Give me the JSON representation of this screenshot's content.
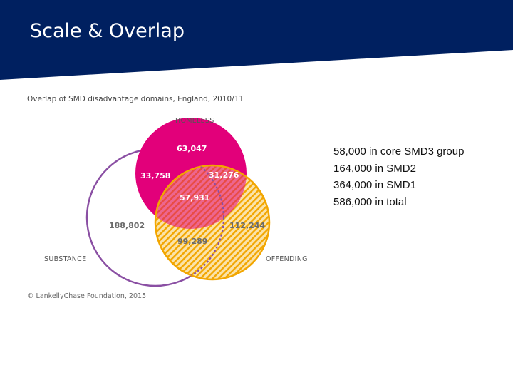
{
  "slide": {
    "title": "Scale & Overlap",
    "header_color": "#002060"
  },
  "figure": {
    "caption": "Overlap of SMD disadvantage domains, England, 2010/11",
    "credit": "© LankellyChase Foundation, 2015",
    "sets": {
      "homeless": {
        "label": "HOMELESS",
        "color": "#e2007a"
      },
      "offending": {
        "label": "OFFENDING",
        "color": "#f2a600"
      },
      "substance": {
        "label": "SUBSTANCE",
        "color": "#8a4fa3"
      }
    },
    "regions": {
      "homeless_only": "63,047",
      "homeless_substance": "33,758",
      "homeless_offending": "31,276",
      "all_three": "57,931",
      "substance_only": "188,802",
      "offending_only": "112,244",
      "substance_offending": "99,289"
    }
  },
  "summary": [
    "58,000 in core SMD3 group",
    "164,000 in SMD2",
    "364,000 in SMD1",
    "586,000 in total"
  ]
}
